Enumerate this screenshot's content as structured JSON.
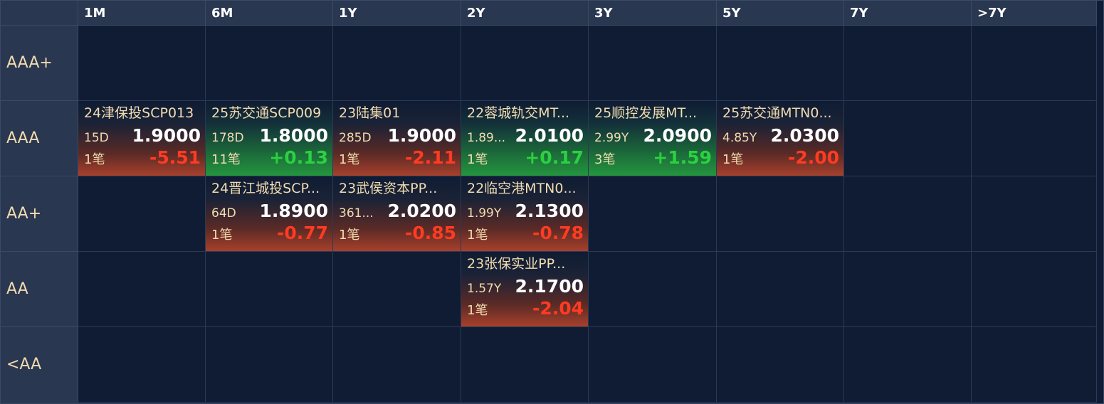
{
  "columns": [
    "1M",
    "6M",
    "1Y",
    "2Y",
    "3Y",
    "5Y",
    "7Y",
    ">7Y"
  ],
  "rows": [
    "AAA+",
    "AAA",
    "AA+",
    "AA",
    "<AA"
  ],
  "colors": {
    "negative": "#ff3b22",
    "positive": "#2ad23f",
    "background": "#0f1c33",
    "header": "#2a3750"
  },
  "bonds": {
    "AAA_1M": {
      "name": "24津保投SCP013",
      "term": "15D",
      "yield": "1.9000",
      "count": "1笔",
      "change": "-5.51",
      "direction": "down"
    },
    "AAA_6M": {
      "name": "25苏交通SCP009",
      "term": "178D",
      "yield": "1.8000",
      "count": "11笔",
      "change": "+0.13",
      "direction": "up"
    },
    "AAA_1Y": {
      "name": "23陆集01",
      "term": "285D",
      "yield": "1.9000",
      "count": "1笔",
      "change": "-2.11",
      "direction": "down"
    },
    "AAA_2Y": {
      "name": "22蓉城轨交MT...",
      "term": "1.89...",
      "yield": "2.0100",
      "count": "1笔",
      "change": "+0.17",
      "direction": "up"
    },
    "AAA_3Y": {
      "name": "25顺控发展MT...",
      "term": "2.99Y",
      "yield": "2.0900",
      "count": "3笔",
      "change": "+1.59",
      "direction": "up"
    },
    "AAA_5Y": {
      "name": "25苏交通MTN0...",
      "term": "4.85Y",
      "yield": "2.0300",
      "count": "1笔",
      "change": "-2.00",
      "direction": "down"
    },
    "AAplus_6M": {
      "name": "24晋江城投SCP...",
      "term": "64D",
      "yield": "1.8900",
      "count": "1笔",
      "change": "-0.77",
      "direction": "down"
    },
    "AAplus_1Y": {
      "name": "23武侯资本PP...",
      "term": "361...",
      "yield": "2.0200",
      "count": "1笔",
      "change": "-0.85",
      "direction": "down"
    },
    "AAplus_2Y": {
      "name": "22临空港MTN0...",
      "term": "1.99Y",
      "yield": "2.1300",
      "count": "1笔",
      "change": "-0.78",
      "direction": "down"
    },
    "AA_2Y": {
      "name": "23张保实业PP...",
      "term": "1.57Y",
      "yield": "2.1700",
      "count": "1笔",
      "change": "-2.04",
      "direction": "down"
    }
  }
}
